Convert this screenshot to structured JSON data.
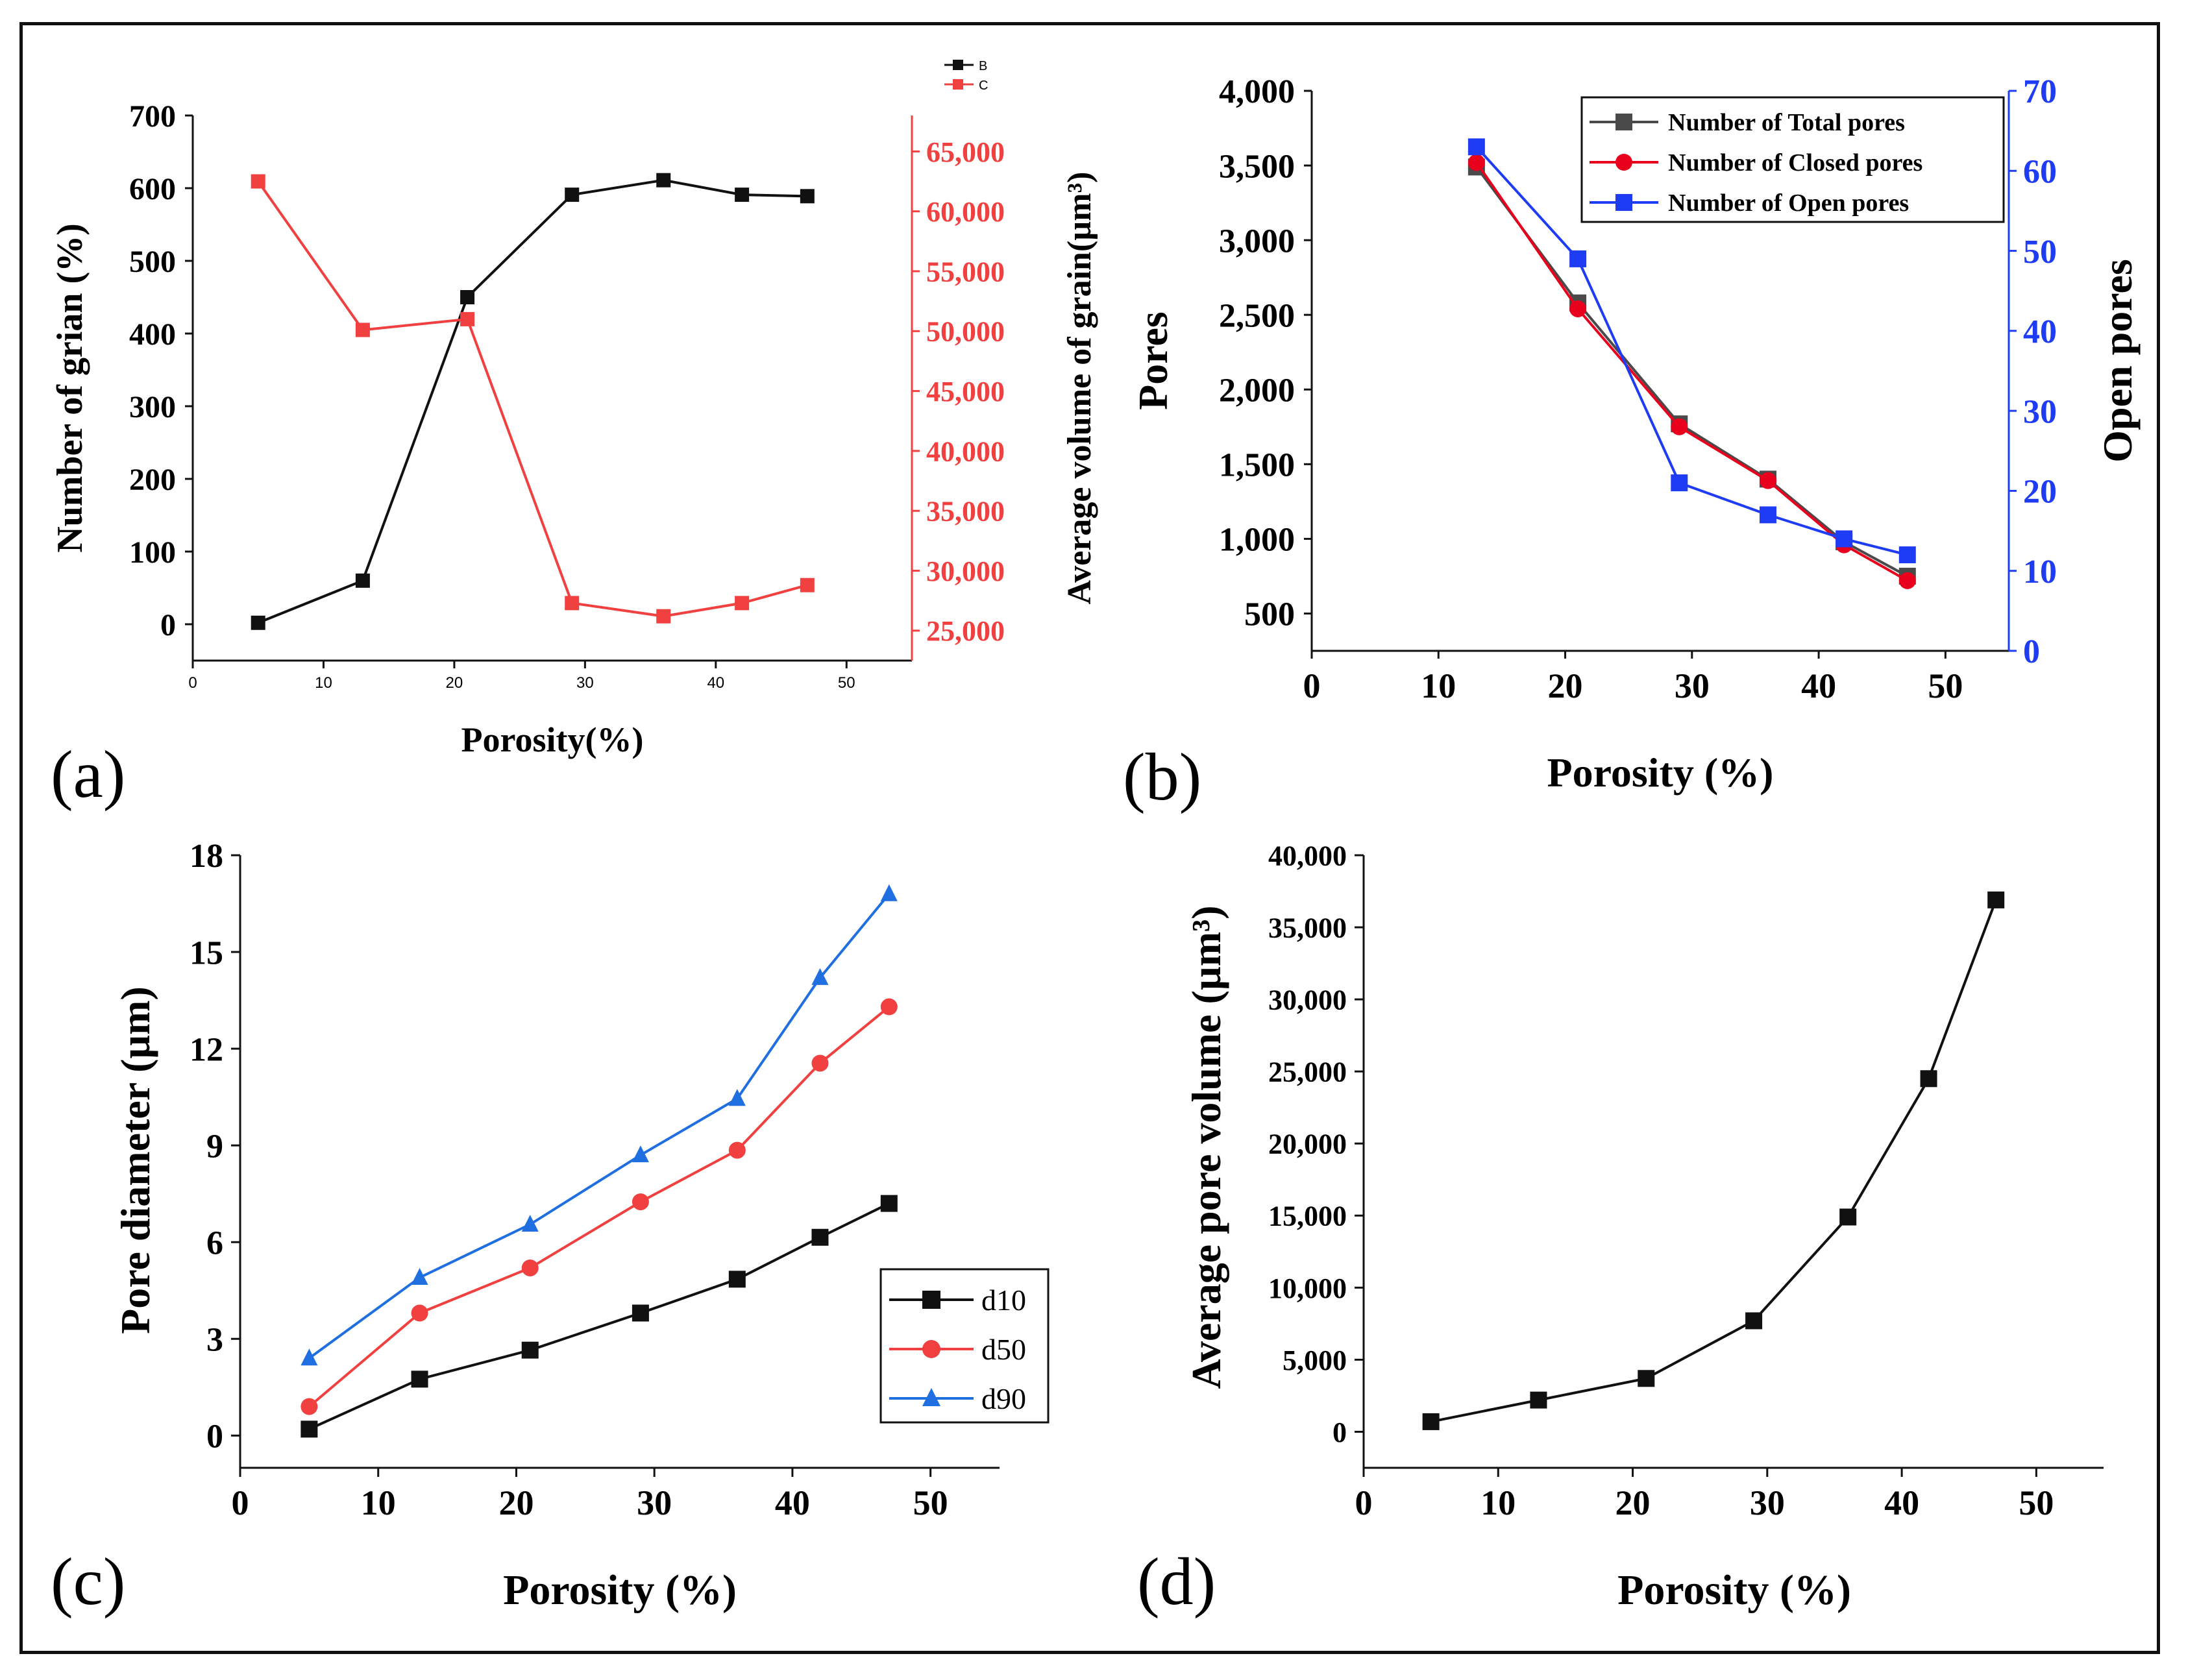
{
  "figure": {
    "panel_labels": [
      "(a)",
      "(b)",
      "(c)",
      "(d)"
    ]
  },
  "colors": {
    "black": "#111111",
    "red": "#f04040",
    "red_b": "#e8001c",
    "blue": "#1f3cf5",
    "blue_c": "#1f6fe0",
    "gray": "#4a4a4a"
  },
  "chart_data": [
    {
      "id": "a",
      "type": "line",
      "title": "",
      "xlabel": "Porosity(%)",
      "ylabel": "Number of grian (%)",
      "y2label": "Average volume of grain(µm³)",
      "x": [
        5,
        13,
        21,
        29,
        36,
        42,
        47
      ],
      "xlim": [
        0,
        55
      ],
      "xticks": [
        0,
        10,
        20,
        30,
        40,
        50
      ],
      "ylim": [
        -50,
        700
      ],
      "yticks": [
        0,
        100,
        200,
        300,
        400,
        500,
        600,
        700
      ],
      "y2lim": [
        22500,
        68000
      ],
      "y2ticks": [
        25000,
        30000,
        35000,
        40000,
        45000,
        50000,
        55000,
        60000,
        65000
      ],
      "y2ticklabels": [
        "25,000",
        "30,000",
        "35,000",
        "40,000",
        "45,000",
        "50,000",
        "55,000",
        "60,000",
        "65,000"
      ],
      "legend_position": "top-right",
      "series": [
        {
          "name": "B",
          "axis": "left",
          "color": "#111111",
          "marker": "square",
          "values": [
            2,
            60,
            450,
            591,
            611,
            591,
            589
          ]
        },
        {
          "name": "C",
          "axis": "right",
          "color": "#f04040",
          "marker": "square",
          "values": [
            62500,
            50100,
            51000,
            27300,
            26200,
            27300,
            28800
          ]
        }
      ]
    },
    {
      "id": "b",
      "type": "line",
      "title": "",
      "xlabel": "Porosity (%)",
      "ylabel": "Pores",
      "y2label": "Open pores",
      "x": [
        13,
        21,
        29,
        36,
        42,
        47
      ],
      "xlim": [
        0,
        55
      ],
      "xticks": [
        0,
        10,
        20,
        30,
        40,
        50
      ],
      "ylim": [
        250,
        4000
      ],
      "yticks": [
        500,
        1000,
        1500,
        2000,
        2500,
        3000,
        3500,
        4000
      ],
      "yticklabels": [
        "500",
        "1,000",
        "1,500",
        "2,000",
        "2,500",
        "3,000",
        "3,500",
        "4,000"
      ],
      "y2lim": [
        0,
        70
      ],
      "y2ticks": [
        0,
        10,
        20,
        30,
        40,
        50,
        60,
        70
      ],
      "legend_position": "top-right",
      "series": [
        {
          "name": "Number of Total pores",
          "axis": "left",
          "color": "#4a4a4a",
          "marker": "square",
          "values": [
            3490,
            2580,
            1770,
            1400,
            980,
            750
          ]
        },
        {
          "name": "Number of Closed pores",
          "axis": "left",
          "color": "#e8001c",
          "marker": "circle",
          "values": [
            3520,
            2540,
            1750,
            1390,
            960,
            720
          ]
        },
        {
          "name": "Number of Open pores",
          "axis": "right",
          "color": "#1f3cf5",
          "marker": "square",
          "values": [
            63,
            49,
            21,
            17,
            14,
            12
          ]
        }
      ]
    },
    {
      "id": "c",
      "type": "line",
      "title": "",
      "xlabel": "Porosity (%)",
      "ylabel": "Pore diameter (µm)",
      "x": [
        5,
        13,
        21,
        29,
        36,
        42,
        47
      ],
      "xlim": [
        0,
        55
      ],
      "xticks": [
        0,
        10,
        20,
        30,
        40,
        50
      ],
      "ylim": [
        -1,
        18
      ],
      "yticks": [
        0,
        3,
        6,
        9,
        12,
        15,
        18
      ],
      "legend_position": "bottom-right",
      "series": [
        {
          "name": "d10",
          "color": "#111111",
          "marker": "square",
          "values": [
            0.2,
            1.75,
            2.65,
            3.8,
            4.85,
            6.15,
            7.2
          ]
        },
        {
          "name": "d50",
          "color": "#f04040",
          "marker": "circle",
          "values": [
            0.9,
            3.8,
            5.2,
            7.25,
            8.85,
            11.55,
            13.3
          ]
        },
        {
          "name": "d90",
          "color": "#1f6fe0",
          "marker": "triangle",
          "values": [
            2.4,
            4.9,
            6.55,
            8.7,
            10.45,
            14.2,
            16.8
          ]
        }
      ]
    },
    {
      "id": "d",
      "type": "line",
      "title": "",
      "xlabel": "Porosity (%)",
      "ylabel": "Average pore volume (µm³)",
      "x": [
        5,
        13,
        21,
        29,
        36,
        42,
        47
      ],
      "xlim": [
        0,
        55
      ],
      "xticks": [
        0,
        10,
        20,
        30,
        40,
        50
      ],
      "ylim": [
        -2500,
        40000
      ],
      "yticks": [
        0,
        5000,
        10000,
        15000,
        20000,
        25000,
        30000,
        35000,
        40000
      ],
      "yticklabels": [
        "0",
        "5,000",
        "10,000",
        "15,000",
        "20,000",
        "25,000",
        "30,000",
        "35,000",
        "40,000"
      ],
      "series": [
        {
          "name": "Average pore volume",
          "color": "#111111",
          "marker": "square",
          "values": [
            700,
            2200,
            3700,
            7700,
            14900,
            24500,
            36900
          ]
        }
      ]
    }
  ]
}
